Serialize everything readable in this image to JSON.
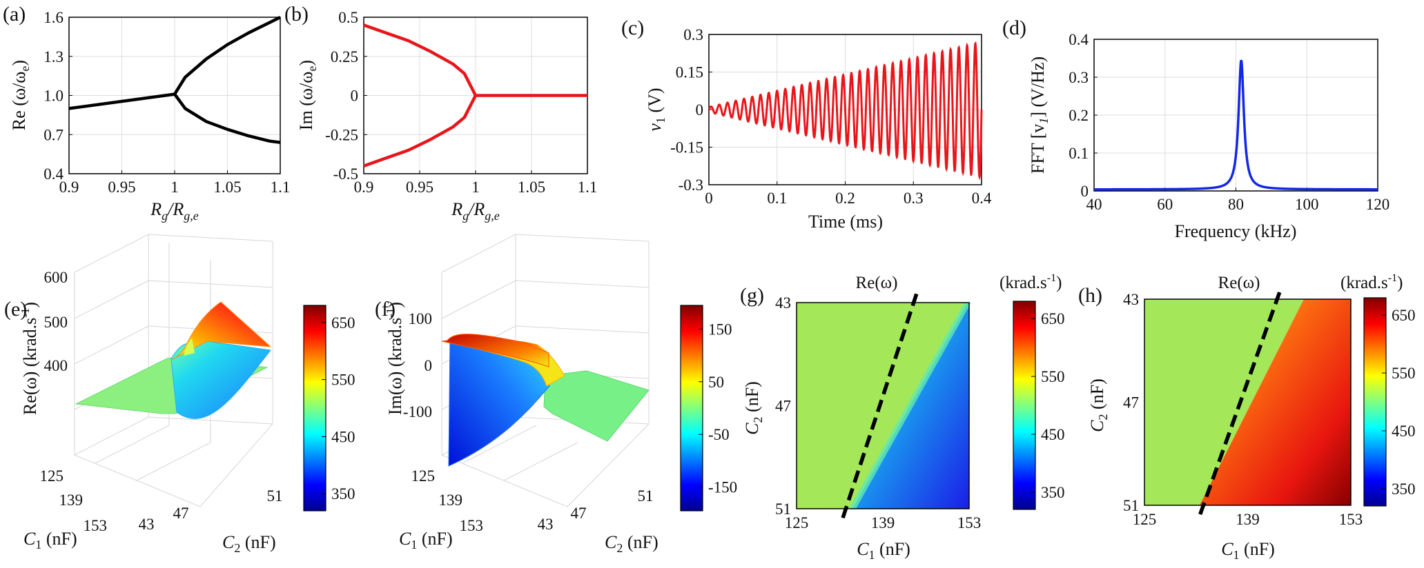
{
  "panels": {
    "a": {
      "label": "(a)",
      "ylabel": "Re (ω/ω",
      "ylabel_sub": "e",
      "ylabel_close": ")",
      "xlabel_main": "R",
      "xlabel_sub1": "g",
      "xlabel_mid": "/R",
      "xlabel_sub2": "g,e"
    },
    "b": {
      "label": "(b)",
      "ylabel": "Im (ω/ω",
      "ylabel_sub": "e",
      "ylabel_close": ")",
      "xlabel_main": "R",
      "xlabel_sub1": "g",
      "xlabel_mid": "/R",
      "xlabel_sub2": "g,e"
    },
    "c": {
      "label": "(c)",
      "ylabel": "v",
      "ylabel_sub": "1",
      "ylabel_close": " (V)",
      "xlabel": "Time (ms)"
    },
    "d": {
      "label": "(d)",
      "ylabel": "FFT [v",
      "ylabel_sub": "1",
      "ylabel_close": "] (V/Hz)",
      "xlabel": "Frequency (kHz)"
    },
    "e": {
      "label": "(e)",
      "zlabel": "Re(ω) (krad.s",
      "zlabel_sup": "-1",
      "zlabel_close": ")",
      "c1label": "C",
      "c1sub": "1",
      "c1unit": " (nF)",
      "c2label": "C",
      "c2sub": "2",
      "c2unit": " (nF)"
    },
    "f": {
      "label": "(f)",
      "zlabel": "Im(ω) (krad.s",
      "zlabel_sup": "-1",
      "zlabel_close": ")",
      "c1label": "C",
      "c1sub": "1",
      "c1unit": " (nF)",
      "c2label": "C",
      "c2sub": "2",
      "c2unit": " (nF)"
    },
    "g": {
      "label": "(g)",
      "title": "Re(ω)",
      "cb_title": "(krad.s",
      "cb_sup": "-1",
      "cb_close": ")",
      "xlabel": "C",
      "xsub": "1",
      "xunit": " (nF)",
      "ylabel": "C",
      "ysub": "2",
      "yunit": " (nF)"
    },
    "h": {
      "label": "(h)",
      "title": "Re(ω)",
      "cb_title": "(krad.s",
      "cb_sup": "-1",
      "cb_close": ")",
      "xlabel": "C",
      "xsub": "1",
      "xunit": " (nF)",
      "ylabel": "C",
      "ysub": "2",
      "yunit": " (nF)"
    }
  },
  "colors": {
    "black": "#000000",
    "red": "#e8161b",
    "blue": "#1228e6",
    "grid": "#dddddd"
  },
  "chart_data": [
    {
      "id": "a",
      "type": "line",
      "xlim": [
        0.9,
        1.1
      ],
      "ylim": [
        0.4,
        1.6
      ],
      "xticks": [
        "0.9",
        "0.95",
        "1",
        "1.05",
        "1.1"
      ],
      "yticks": [
        "0.4",
        "0.7",
        "1.0",
        "1.3",
        "1.6"
      ],
      "series": [
        {
          "name": "lower-branch-left",
          "x": [
            0.9,
            1.0
          ],
          "y": [
            0.9,
            1.01
          ]
        },
        {
          "name": "upper-branch",
          "x": [
            1.0,
            1.01,
            1.03,
            1.05,
            1.07,
            1.09,
            1.1
          ],
          "y": [
            1.01,
            1.14,
            1.28,
            1.39,
            1.48,
            1.56,
            1.6
          ]
        },
        {
          "name": "lower-branch",
          "x": [
            1.0,
            1.01,
            1.03,
            1.05,
            1.07,
            1.09,
            1.1
          ],
          "y": [
            1.01,
            0.9,
            0.8,
            0.74,
            0.69,
            0.65,
            0.64
          ]
        }
      ]
    },
    {
      "id": "b",
      "type": "line",
      "xlim": [
        0.9,
        1.1
      ],
      "ylim": [
        -0.5,
        0.5
      ],
      "xticks": [
        "0.9",
        "0.95",
        "1",
        "1.05",
        "1.1"
      ],
      "yticks": [
        "-0.5",
        "-0.25",
        "0",
        "0.25",
        "0.5"
      ],
      "series": [
        {
          "name": "upper",
          "x": [
            0.9,
            0.92,
            0.94,
            0.96,
            0.98,
            0.99,
            1.0
          ],
          "y": [
            0.45,
            0.4,
            0.35,
            0.28,
            0.2,
            0.14,
            0.0
          ]
        },
        {
          "name": "lower",
          "x": [
            0.9,
            0.92,
            0.94,
            0.96,
            0.98,
            0.99,
            1.0
          ],
          "y": [
            -0.45,
            -0.4,
            -0.35,
            -0.28,
            -0.2,
            -0.14,
            0.0
          ]
        },
        {
          "name": "zero",
          "x": [
            1.0,
            1.1
          ],
          "y": [
            0,
            0
          ]
        }
      ]
    },
    {
      "id": "c",
      "type": "line",
      "xlim": [
        0,
        0.4
      ],
      "ylim": [
        -0.3,
        0.3
      ],
      "xticks": [
        "0",
        "0.1",
        "0.2",
        "0.3",
        "0.4"
      ],
      "yticks": [
        "-0.3",
        "-0.15",
        "0",
        "0.15",
        "0.3"
      ],
      "signal": {
        "cycles": 33,
        "start_amp": 0.01,
        "end_amp": 0.27,
        "duration": 0.4
      }
    },
    {
      "id": "d",
      "type": "line",
      "xlim": [
        40,
        120
      ],
      "ylim": [
        0,
        0.4
      ],
      "xticks": [
        "40",
        "60",
        "80",
        "100",
        "120"
      ],
      "yticks": [
        "0",
        "0.1",
        "0.2",
        "0.3",
        "0.4"
      ],
      "peak": {
        "x": 81.5,
        "y": 0.345,
        "width": 0.9,
        "baseline": 0.004
      }
    },
    {
      "id": "e",
      "type": "surface",
      "zlim": [
        350,
        650
      ],
      "zticks": [
        "400",
        "500",
        "600"
      ],
      "c1ticks": [
        "125",
        "139",
        "153"
      ],
      "c2ticks": [
        "43",
        "47",
        "51"
      ],
      "cbticks": [
        "350",
        "450",
        "550",
        "650"
      ]
    },
    {
      "id": "f",
      "type": "surface",
      "zlim": [
        -175,
        175
      ],
      "zticks": [
        "-100",
        "0",
        "100"
      ],
      "c1ticks": [
        "125",
        "139",
        "153"
      ],
      "c2ticks": [
        "43",
        "47",
        "51"
      ],
      "cbticks": [
        "-150",
        "-50",
        "50",
        "150"
      ]
    },
    {
      "id": "g",
      "type": "heatmap",
      "xlim": [
        125,
        153
      ],
      "ylim": [
        43,
        51
      ],
      "xticks": [
        "125",
        "139",
        "153"
      ],
      "yticks": [
        "43",
        "47",
        "51"
      ],
      "cbticks": [
        "350",
        "450",
        "550",
        "650"
      ],
      "boundary": {
        "x": [
          133,
          144
        ],
        "y": [
          51,
          43
        ]
      }
    },
    {
      "id": "h",
      "type": "heatmap",
      "xlim": [
        125,
        153
      ],
      "ylim": [
        43,
        51
      ],
      "xticks": [
        "125",
        "139",
        "153"
      ],
      "yticks": [
        "43",
        "47",
        "51"
      ],
      "cbticks": [
        "350",
        "450",
        "550",
        "650"
      ],
      "boundary": {
        "x": [
          133,
          143
        ],
        "y": [
          51,
          43
        ]
      }
    }
  ]
}
